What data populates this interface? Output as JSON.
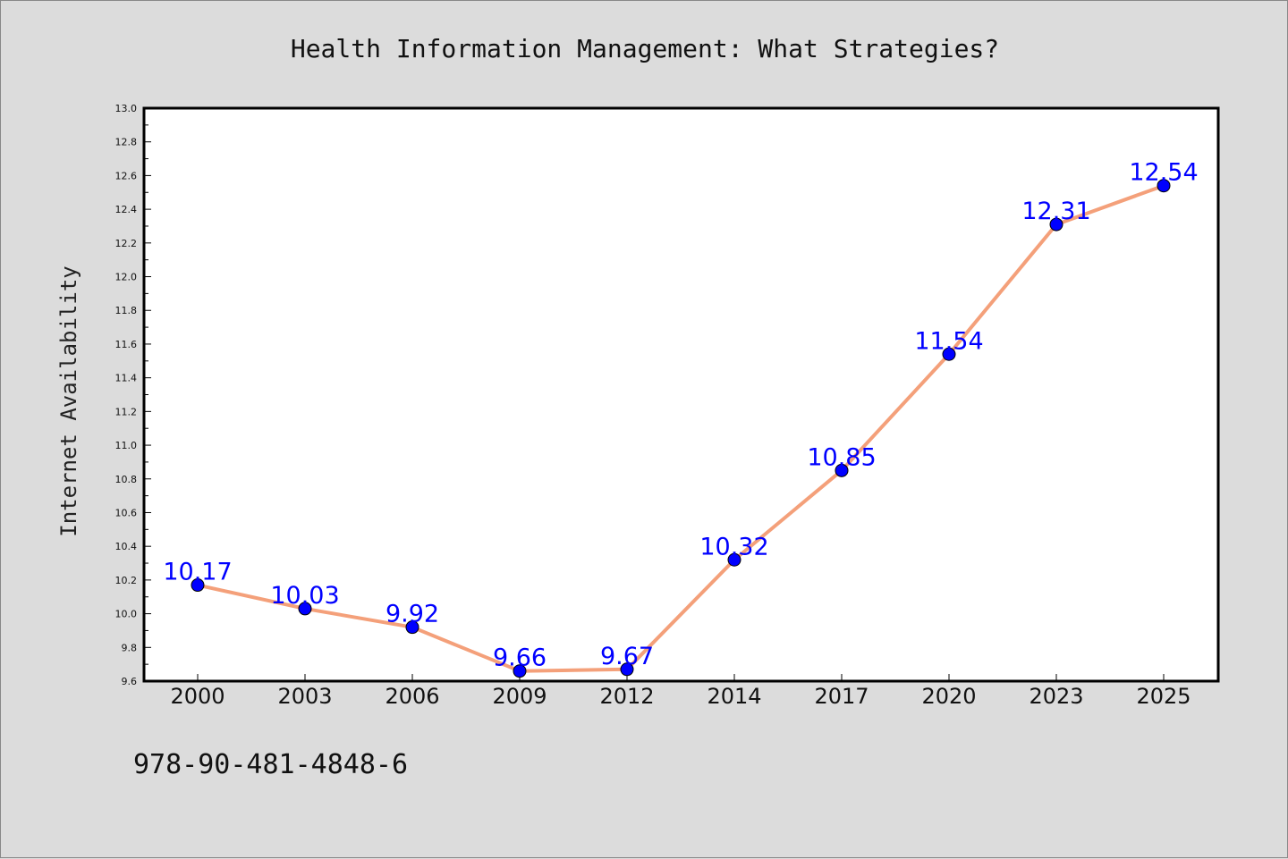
{
  "chart_data": {
    "type": "line",
    "title": "Health Information Management: What Strategies?",
    "xlabel": "",
    "ylabel": "Internet Availability",
    "categories": [
      "2000",
      "2003",
      "2006",
      "2009",
      "2012",
      "2014",
      "2017",
      "2020",
      "2023",
      "2025"
    ],
    "series": [
      {
        "values": [
          10.17,
          10.03,
          9.92,
          9.66,
          9.67,
          10.32,
          10.85,
          11.54,
          12.31,
          12.54
        ],
        "data_labels": [
          "10.17",
          "10.03",
          "9.92",
          "9.66",
          "9.67",
          "10.32",
          "10.85",
          "11.54",
          "12.31",
          "12.54"
        ],
        "line_color": "#f4a07a",
        "marker_color": "#0000ff"
      }
    ],
    "ylim": [
      9.6,
      13.0
    ],
    "yticks": [
      "9.6",
      "9.8",
      "10.0",
      "10.2",
      "10.4",
      "10.6",
      "10.8",
      "11.0",
      "11.2",
      "11.4",
      "11.6",
      "11.8",
      "12.0",
      "12.2",
      "12.4",
      "12.6",
      "12.8",
      "13.0"
    ],
    "grid": false,
    "legend": "none",
    "background_color": "#dcdcdc",
    "plot_background_color": "#ffffff",
    "label_color": "#0000ff"
  },
  "footnote": "978-90-481-4848-6"
}
